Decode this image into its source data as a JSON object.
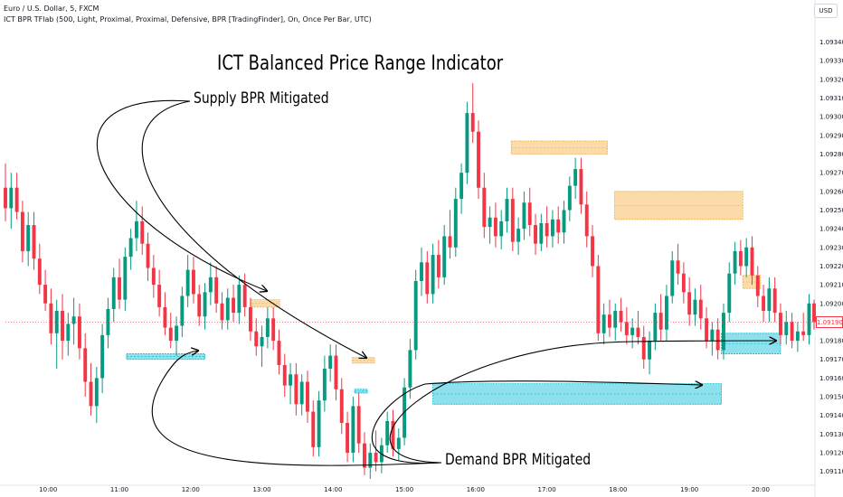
{
  "header": {
    "symbol": "Euro / U.S. Dollar, 5, FXCM",
    "indicator": "ICT BPR TFlab (500, Light, Proximal, Proximal, Defensive, BPR [TradingFinder], On, Once Per Bar, UTC)"
  },
  "currency": "USD",
  "annotations": {
    "title": "ICT Balanced Price Range Indicator",
    "supply": "Supply BPR Mitigated",
    "demand": "Demand BPR Mitigated"
  },
  "colors": {
    "up": "#089981",
    "down": "#f23645",
    "supply_zone": "#f5b041",
    "demand_zone": "#00bcd4",
    "arrow": "#000000"
  },
  "chart_data": {
    "type": "candlestick",
    "symbol": "EURUSD",
    "timeframe": "5",
    "x_ticks": [
      "10:00",
      "11:00",
      "12:00",
      "13:00",
      "14:00",
      "15:00",
      "16:00",
      "17:00",
      "18:00",
      "19:00",
      "20:00"
    ],
    "y_ticks": [
      "1.09110",
      "1.09120",
      "1.09130",
      "1.09140",
      "1.09150",
      "1.09160",
      "1.09170",
      "1.09180",
      "1.09190",
      "1.09200",
      "1.09210",
      "1.09220",
      "1.09230",
      "1.09240",
      "1.09250",
      "1.09260",
      "1.09270",
      "1.09280",
      "1.09290",
      "1.09300",
      "1.09310",
      "1.09320",
      "1.09330",
      "1.09340"
    ],
    "ylim": [
      1.09105,
      1.09349
    ],
    "x_range_hours": [
      9.4,
      20.75
    ],
    "last_price": "1.09190",
    "last_price_value": 1.0919,
    "candles": [
      [
        9.4,
        1.09262,
        1.09275,
        1.09244,
        1.09251
      ],
      [
        9.48,
        1.09251,
        1.0927,
        1.0924,
        1.09262
      ],
      [
        9.56,
        1.09262,
        1.0927,
        1.09245,
        1.09249
      ],
      [
        9.64,
        1.09249,
        1.09255,
        1.09222,
        1.09228
      ],
      [
        9.72,
        1.09228,
        1.09249,
        1.0922,
        1.09242
      ],
      [
        9.8,
        1.09242,
        1.09249,
        1.09218,
        1.09224
      ],
      [
        9.88,
        1.09224,
        1.09232,
        1.09205,
        1.0921
      ],
      [
        9.96,
        1.0921,
        1.09218,
        1.09196,
        1.092
      ],
      [
        10.04,
        1.092,
        1.09208,
        1.09178,
        1.09184
      ],
      [
        10.12,
        1.09184,
        1.09202,
        1.09165,
        1.09196
      ],
      [
        10.2,
        1.09196,
        1.09205,
        1.0917,
        1.0918
      ],
      [
        10.28,
        1.0918,
        1.09195,
        1.09172,
        1.09189
      ],
      [
        10.36,
        1.09189,
        1.09203,
        1.09178,
        1.09193
      ],
      [
        10.44,
        1.09193,
        1.092,
        1.0917,
        1.09176
      ],
      [
        10.52,
        1.09176,
        1.09184,
        1.0915,
        1.09158
      ],
      [
        10.6,
        1.09158,
        1.09168,
        1.0914,
        1.09145
      ],
      [
        10.68,
        1.09145,
        1.09166,
        1.09136,
        1.0916
      ],
      [
        10.76,
        1.0916,
        1.09189,
        1.09152,
        1.09183
      ],
      [
        10.84,
        1.09183,
        1.09203,
        1.09176,
        1.09197
      ],
      [
        10.92,
        1.09197,
        1.09219,
        1.0919,
        1.09214
      ],
      [
        11.0,
        1.09214,
        1.09224,
        1.09197,
        1.09202
      ],
      [
        11.08,
        1.09202,
        1.0923,
        1.09196,
        1.09225
      ],
      [
        11.16,
        1.09225,
        1.0924,
        1.09218,
        1.09235
      ],
      [
        11.24,
        1.09235,
        1.09255,
        1.09228,
        1.09244
      ],
      [
        11.32,
        1.09244,
        1.09252,
        1.09226,
        1.09232
      ],
      [
        11.4,
        1.09232,
        1.09238,
        1.09212,
        1.09219
      ],
      [
        11.48,
        1.09219,
        1.09226,
        1.09203,
        1.0921
      ],
      [
        11.56,
        1.0921,
        1.09218,
        1.09193,
        1.09198
      ],
      [
        11.64,
        1.09198,
        1.09206,
        1.09183,
        1.09187
      ],
      [
        11.72,
        1.09187,
        1.09195,
        1.09176,
        1.0918
      ],
      [
        11.8,
        1.0918,
        1.09193,
        1.09172,
        1.09188
      ],
      [
        11.88,
        1.09188,
        1.09209,
        1.09182,
        1.09204
      ],
      [
        11.96,
        1.09204,
        1.09226,
        1.09198,
        1.09218
      ],
      [
        12.04,
        1.09218,
        1.09225,
        1.092,
        1.09205
      ],
      [
        12.12,
        1.09205,
        1.0921,
        1.09188,
        1.09193
      ],
      [
        12.2,
        1.09193,
        1.09211,
        1.09186,
        1.09206
      ],
      [
        12.28,
        1.09206,
        1.09222,
        1.09199,
        1.09214
      ],
      [
        12.36,
        1.09214,
        1.0922,
        1.09195,
        1.092
      ],
      [
        12.44,
        1.092,
        1.09206,
        1.09186,
        1.09191
      ],
      [
        12.52,
        1.09191,
        1.09208,
        1.09186,
        1.09203
      ],
      [
        12.6,
        1.09203,
        1.0921,
        1.0919,
        1.09195
      ],
      [
        12.68,
        1.09195,
        1.09215,
        1.09189,
        1.0921
      ],
      [
        12.76,
        1.0921,
        1.09216,
        1.09193,
        1.09198
      ],
      [
        12.84,
        1.09198,
        1.09203,
        1.0918,
        1.09185
      ],
      [
        12.92,
        1.09185,
        1.09192,
        1.09172,
        1.09177
      ],
      [
        13.0,
        1.09177,
        1.09188,
        1.09166,
        1.09182
      ],
      [
        13.08,
        1.09182,
        1.09198,
        1.09176,
        1.09192
      ],
      [
        13.16,
        1.09192,
        1.09198,
        1.09175,
        1.0918
      ],
      [
        13.24,
        1.0918,
        1.09186,
        1.09162,
        1.09167
      ],
      [
        13.32,
        1.09167,
        1.09173,
        1.0915,
        1.09156
      ],
      [
        13.4,
        1.09156,
        1.09168,
        1.09146,
        1.09162
      ],
      [
        13.48,
        1.09162,
        1.09168,
        1.0914,
        1.09146
      ],
      [
        13.56,
        1.09146,
        1.09162,
        1.0914,
        1.09158
      ],
      [
        13.64,
        1.09158,
        1.09164,
        1.09136,
        1.09142
      ],
      [
        13.72,
        1.09142,
        1.09148,
        1.09118,
        1.09123
      ],
      [
        13.8,
        1.09123,
        1.09153,
        1.09118,
        1.09148
      ],
      [
        13.88,
        1.09148,
        1.09172,
        1.09142,
        1.09165
      ],
      [
        13.96,
        1.09165,
        1.09178,
        1.09158,
        1.09172
      ],
      [
        14.04,
        1.09172,
        1.09178,
        1.09148,
        1.09154
      ],
      [
        14.12,
        1.09154,
        1.0916,
        1.0913,
        1.09136
      ],
      [
        14.2,
        1.09136,
        1.09142,
        1.09115,
        1.0912
      ],
      [
        14.28,
        1.0912,
        1.0915,
        1.09115,
        1.09145
      ],
      [
        14.36,
        1.09145,
        1.09152,
        1.0912,
        1.09125
      ],
      [
        14.44,
        1.09125,
        1.09131,
        1.09108,
        1.09112
      ],
      [
        14.52,
        1.09112,
        1.09125,
        1.09106,
        1.0912
      ],
      [
        14.6,
        1.0912,
        1.09132,
        1.0911,
        1.09115
      ],
      [
        14.68,
        1.09115,
        1.09128,
        1.09109,
        1.09124
      ],
      [
        14.76,
        1.09124,
        1.09142,
        1.0912,
        1.09137
      ],
      [
        14.84,
        1.09137,
        1.09143,
        1.09118,
        1.09122
      ],
      [
        14.92,
        1.09122,
        1.09133,
        1.09116,
        1.09128
      ],
      [
        15.0,
        1.09128,
        1.0916,
        1.09124,
        1.09155
      ],
      [
        15.08,
        1.09155,
        1.09181,
        1.09149,
        1.09175
      ],
      [
        15.16,
        1.09175,
        1.09218,
        1.0917,
        1.09212
      ],
      [
        15.24,
        1.09212,
        1.0923,
        1.09204,
        1.09222
      ],
      [
        15.32,
        1.09222,
        1.09228,
        1.092,
        1.09205
      ],
      [
        15.4,
        1.09205,
        1.09232,
        1.092,
        1.09226
      ],
      [
        15.48,
        1.09226,
        1.09234,
        1.09208,
        1.09214
      ],
      [
        15.56,
        1.09214,
        1.09242,
        1.0921,
        1.09236
      ],
      [
        15.64,
        1.09236,
        1.0925,
        1.09224,
        1.0923
      ],
      [
        15.72,
        1.0923,
        1.09262,
        1.09225,
        1.09256
      ],
      [
        15.8,
        1.09256,
        1.09275,
        1.09248,
        1.0927
      ],
      [
        15.88,
        1.0927,
        1.09308,
        1.09264,
        1.09302
      ],
      [
        15.96,
        1.09302,
        1.09318,
        1.09286,
        1.09292
      ],
      [
        16.04,
        1.09292,
        1.09298,
        1.09256,
        1.09262
      ],
      [
        16.12,
        1.09262,
        1.0927,
        1.09235,
        1.09241
      ],
      [
        16.2,
        1.09241,
        1.09252,
        1.09232,
        1.09246
      ],
      [
        16.28,
        1.09246,
        1.09254,
        1.0923,
        1.09236
      ],
      [
        16.36,
        1.09236,
        1.0925,
        1.09229,
        1.09244
      ],
      [
        16.44,
        1.09244,
        1.09262,
        1.09238,
        1.09256
      ],
      [
        16.52,
        1.09256,
        1.09262,
        1.09228,
        1.09233
      ],
      [
        16.6,
        1.09233,
        1.09246,
        1.09226,
        1.0924
      ],
      [
        16.68,
        1.0924,
        1.0926,
        1.09234,
        1.09254
      ],
      [
        16.76,
        1.09254,
        1.09262,
        1.09236,
        1.09242
      ],
      [
        16.84,
        1.09242,
        1.09248,
        1.09226,
        1.09232
      ],
      [
        16.92,
        1.09232,
        1.09248,
        1.09228,
        1.09243
      ],
      [
        17.0,
        1.09243,
        1.09252,
        1.0923,
        1.09236
      ],
      [
        17.08,
        1.09236,
        1.0925,
        1.0923,
        1.09245
      ],
      [
        17.16,
        1.09245,
        1.09252,
        1.09232,
        1.09238
      ],
      [
        17.24,
        1.09238,
        1.09255,
        1.09232,
        1.0925
      ],
      [
        17.32,
        1.0925,
        1.09268,
        1.09244,
        1.09263
      ],
      [
        17.4,
        1.09263,
        1.09278,
        1.09256,
        1.09272
      ],
      [
        17.48,
        1.09272,
        1.09278,
        1.09248,
        1.09253
      ],
      [
        17.56,
        1.09253,
        1.0926,
        1.0923,
        1.09236
      ],
      [
        17.64,
        1.09236,
        1.09242,
        1.09214,
        1.0922
      ],
      [
        17.72,
        1.0922,
        1.09226,
        1.0918,
        1.09184
      ],
      [
        17.8,
        1.09184,
        1.092,
        1.09178,
        1.09194
      ],
      [
        17.88,
        1.09194,
        1.09202,
        1.09182,
        1.09187
      ],
      [
        17.96,
        1.09187,
        1.092,
        1.0918,
        1.09196
      ],
      [
        18.04,
        1.09196,
        1.09203,
        1.09185,
        1.0919
      ],
      [
        18.12,
        1.0919,
        1.09198,
        1.09178,
        1.09183
      ],
      [
        18.2,
        1.09183,
        1.09192,
        1.09176,
        1.09187
      ],
      [
        18.28,
        1.09187,
        1.09196,
        1.09178,
        1.09182
      ],
      [
        18.36,
        1.09182,
        1.09188,
        1.09165,
        1.0917
      ],
      [
        18.44,
        1.0917,
        1.09185,
        1.09162,
        1.0918
      ],
      [
        18.52,
        1.0918,
        1.092,
        1.09175,
        1.09195
      ],
      [
        18.6,
        1.09195,
        1.09205,
        1.0918,
        1.09186
      ],
      [
        18.68,
        1.09186,
        1.0921,
        1.0918,
        1.09204
      ],
      [
        18.76,
        1.09204,
        1.09228,
        1.092,
        1.09223
      ],
      [
        18.84,
        1.09223,
        1.09232,
        1.0921,
        1.09216
      ],
      [
        18.92,
        1.09216,
        1.09222,
        1.092,
        1.09206
      ],
      [
        19.0,
        1.09206,
        1.09214,
        1.09188,
        1.09194
      ],
      [
        19.08,
        1.09194,
        1.09208,
        1.09188,
        1.09202
      ],
      [
        19.16,
        1.09202,
        1.0921,
        1.09186,
        1.09192
      ],
      [
        19.24,
        1.09192,
        1.09198,
        1.09176,
        1.0918
      ],
      [
        19.32,
        1.0918,
        1.0919,
        1.09172,
        1.09186
      ],
      [
        19.4,
        1.09186,
        1.09192,
        1.0917,
        1.09175
      ],
      [
        19.48,
        1.09175,
        1.092,
        1.0917,
        1.09195
      ],
      [
        19.56,
        1.09195,
        1.09222,
        1.0919,
        1.09216
      ],
      [
        19.64,
        1.09216,
        1.09233,
        1.0921,
        1.09228
      ],
      [
        19.72,
        1.09228,
        1.09234,
        1.09215,
        1.0922
      ],
      [
        19.8,
        1.0922,
        1.09235,
        1.09214,
        1.0923
      ],
      [
        19.88,
        1.0923,
        1.09236,
        1.0921,
        1.09215
      ],
      [
        19.96,
        1.09215,
        1.0922,
        1.09198,
        1.09204
      ],
      [
        20.04,
        1.09204,
        1.0921,
        1.0919,
        1.09196
      ],
      [
        20.12,
        1.09196,
        1.09214,
        1.0919,
        1.09208
      ],
      [
        20.2,
        1.09208,
        1.09214,
        1.0919,
        1.09195
      ],
      [
        20.28,
        1.09195,
        1.092,
        1.09178,
        1.09183
      ],
      [
        20.36,
        1.09183,
        1.09196,
        1.09178,
        1.0919
      ],
      [
        20.44,
        1.0919,
        1.09195,
        1.09176,
        1.0918
      ],
      [
        20.52,
        1.0918,
        1.0919,
        1.09174,
        1.09185
      ],
      [
        20.6,
        1.09185,
        1.09195,
        1.0918,
        1.09183
      ],
      [
        20.68,
        1.09183,
        1.09205,
        1.09178,
        1.092
      ],
      [
        20.75,
        1.092,
        1.09202,
        1.09186,
        1.0919
      ]
    ],
    "zones": [
      {
        "kind": "supply",
        "t1": 12.85,
        "t2": 13.25,
        "top": 1.09202,
        "bottom": 1.09198
      },
      {
        "kind": "supply",
        "t1": 14.27,
        "t2": 14.58,
        "top": 1.09171,
        "bottom": 1.09168
      },
      {
        "kind": "supply",
        "t1": 16.5,
        "t2": 17.85,
        "top": 1.09287,
        "bottom": 1.0928
      },
      {
        "kind": "supply",
        "t1": 17.95,
        "t2": 19.75,
        "top": 1.0926,
        "bottom": 1.09245
      },
      {
        "kind": "supply",
        "t1": 19.75,
        "t2": 20.0,
        "top": 1.09215,
        "bottom": 1.09208
      },
      {
        "kind": "demand",
        "t1": 11.1,
        "t2": 12.2,
        "top": 1.09173,
        "bottom": 1.0917
      },
      {
        "kind": "demand",
        "t1": 14.3,
        "t2": 14.48,
        "top": 1.09154,
        "bottom": 1.09152
      },
      {
        "kind": "demand",
        "t1": 15.4,
        "t2": 19.45,
        "top": 1.09157,
        "bottom": 1.09146
      },
      {
        "kind": "demand",
        "t1": 19.45,
        "t2": 20.28,
        "top": 1.09184,
        "bottom": 1.09173
      }
    ]
  }
}
